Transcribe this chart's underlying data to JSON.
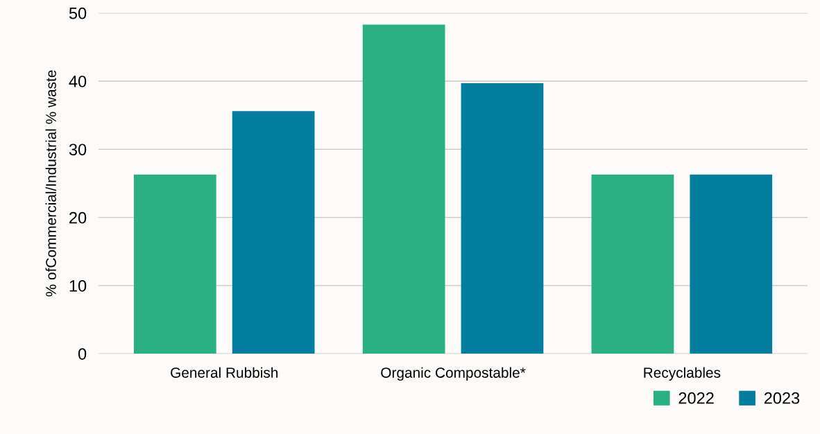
{
  "chart_data": {
    "type": "bar",
    "ylabel": "% ofCommercial/Industrial % waste",
    "categories": [
      "General Rubbish",
      "Organic Compostable*",
      "Recyclables"
    ],
    "series": [
      {
        "name": "2022",
        "color": "#2bb083",
        "values": [
          26.3,
          48.3,
          26.3
        ]
      },
      {
        "name": "2023",
        "color": "#047e9f",
        "values": [
          35.6,
          39.7,
          26.3
        ]
      }
    ],
    "ylim": [
      0,
      50
    ],
    "yticks": [
      0,
      10,
      20,
      30,
      40,
      50
    ],
    "grid": "y",
    "legend": "bottom right"
  }
}
